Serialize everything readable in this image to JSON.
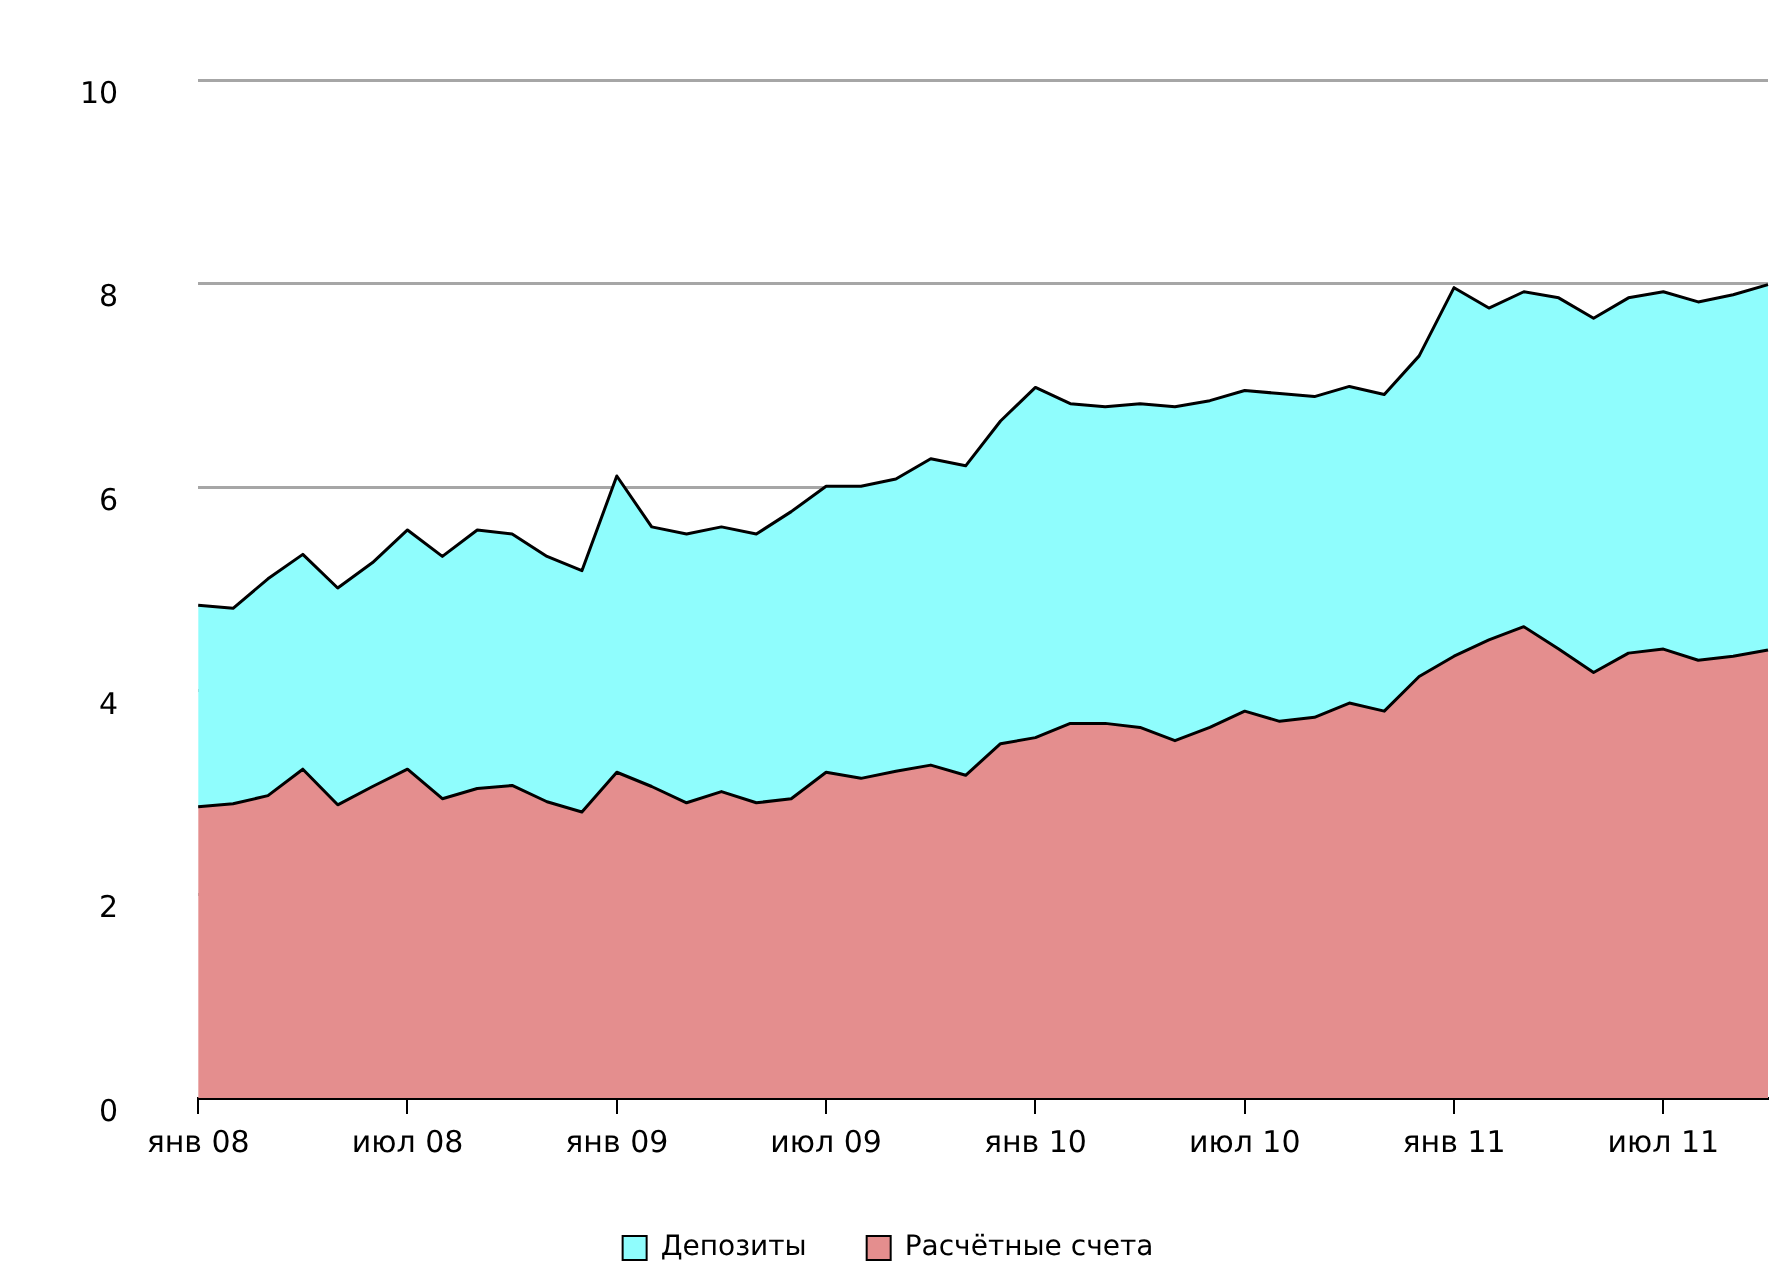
{
  "chart_data": {
    "type": "area",
    "stacked": true,
    "categories": [
      "янв 08",
      null,
      null,
      null,
      null,
      null,
      "июл 08",
      null,
      null,
      null,
      null,
      null,
      "янв 09",
      null,
      null,
      null,
      null,
      null,
      "июл 09",
      null,
      null,
      null,
      null,
      null,
      "янв 10",
      null,
      null,
      null,
      null,
      null,
      "июл 10",
      null,
      null,
      null,
      null,
      null,
      "янв 11",
      null,
      null,
      null,
      null,
      null,
      "июл 11",
      null,
      null,
      null
    ],
    "series": [
      {
        "name": "Расчётные счета",
        "color": "#e48e8e",
        "values": [
          2.86,
          2.89,
          2.97,
          3.23,
          2.88,
          3.06,
          3.23,
          2.94,
          3.04,
          3.07,
          2.91,
          2.81,
          3.2,
          3.06,
          2.9,
          3.01,
          2.9,
          2.94,
          3.2,
          3.14,
          3.21,
          3.27,
          3.17,
          3.48,
          3.54,
          3.68,
          3.68,
          3.64,
          3.51,
          3.64,
          3.8,
          3.7,
          3.74,
          3.88,
          3.8,
          4.14,
          4.34,
          4.5,
          4.63,
          4.41,
          4.18,
          4.37,
          4.41,
          4.3,
          4.34,
          4.4
        ]
      },
      {
        "name": "Депозиты",
        "color": "#8ffdfd",
        "values": [
          1.98,
          1.92,
          2.13,
          2.11,
          2.13,
          2.2,
          2.35,
          2.38,
          2.54,
          2.47,
          2.41,
          2.37,
          2.91,
          2.55,
          2.64,
          2.6,
          2.64,
          2.82,
          2.81,
          2.87,
          2.87,
          3.01,
          3.04,
          3.17,
          3.44,
          3.14,
          3.11,
          3.18,
          3.28,
          3.21,
          3.15,
          3.22,
          3.15,
          3.11,
          3.11,
          3.15,
          3.62,
          3.26,
          3.29,
          3.45,
          3.48,
          3.49,
          3.51,
          3.52,
          3.55,
          3.59
        ]
      }
    ],
    "ylim": [
      0,
      10
    ],
    "yticks": [
      0,
      2,
      4,
      6,
      8,
      10
    ],
    "grid": "y",
    "legend": "bottom",
    "marker": "none",
    "line_style": "solid"
  }
}
